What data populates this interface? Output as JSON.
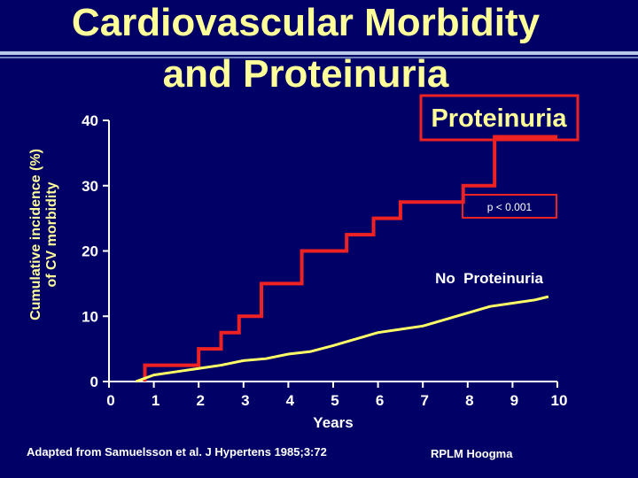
{
  "slide": {
    "title_line1": "Cardiovascular Morbidity",
    "title_line2": "and Proteinuria",
    "footnote_left": "Adapted from Samuelsson et al. J Hypertens 1985;3:72",
    "footnote_right": "RPLM Hoogma"
  },
  "colors": {
    "background": "#000066",
    "title": "#ffff99",
    "proteinuria": "#ee2222",
    "no_proteinuria": "#ffff66",
    "axis": "#ffffff"
  },
  "chart_data": {
    "type": "line",
    "xlabel": "Years",
    "ylabel_line1": "Cumulative incidence (%)",
    "ylabel_line2": "of CV morbidity",
    "xlim": [
      0,
      10
    ],
    "ylim": [
      0,
      40
    ],
    "xticks": [
      0,
      1,
      2,
      3,
      4,
      5,
      6,
      7,
      8,
      9,
      10
    ],
    "yticks": [
      0,
      10,
      20,
      30,
      40
    ],
    "annotation": "p < 0.001",
    "series": [
      {
        "name": "Proteinuria",
        "step": true,
        "x": [
          0.8,
          0.8,
          2.0,
          2.0,
          2.5,
          2.5,
          2.9,
          2.9,
          3.4,
          3.4,
          4.3,
          4.3,
          5.3,
          5.3,
          5.9,
          5.9,
          6.5,
          6.5,
          7.9,
          7.9,
          8.6,
          8.6,
          10.0
        ],
        "y": [
          0,
          2.5,
          2.5,
          5,
          5,
          7.5,
          7.5,
          10,
          10,
          15,
          15,
          20,
          20,
          22.5,
          22.5,
          25,
          25,
          27.5,
          27.5,
          30,
          30,
          37.5,
          37.5
        ]
      },
      {
        "name": "No  Proteinuria",
        "step": false,
        "x": [
          0.6,
          1.0,
          1.5,
          2.0,
          2.5,
          3.0,
          3.5,
          4.0,
          4.5,
          5.0,
          5.5,
          6.0,
          6.5,
          7.0,
          7.5,
          8.0,
          8.5,
          9.0,
          9.5,
          9.8
        ],
        "y": [
          0,
          1.0,
          1.5,
          2.0,
          2.5,
          3.2,
          3.5,
          4.2,
          4.6,
          5.5,
          6.5,
          7.5,
          8.0,
          8.5,
          9.5,
          10.5,
          11.5,
          12.0,
          12.5,
          13.0
        ]
      }
    ]
  }
}
